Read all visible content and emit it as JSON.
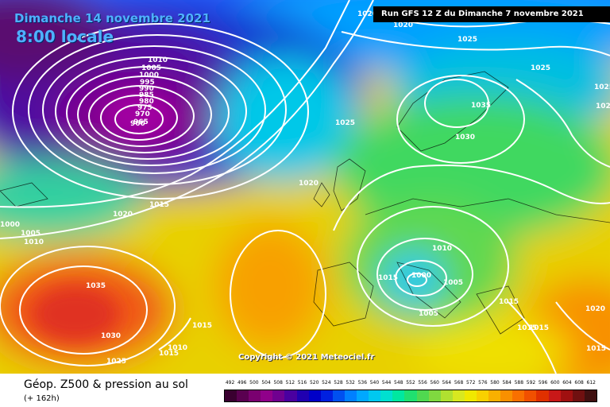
{
  "map": {
    "title": "Dimanche 14 novembre 2021",
    "time": "8:00 locale",
    "run": "Run GFS 12 Z du Dimanche 7 novembre 2021",
    "copyright": "Copyright © 2021 Meteociel.fr"
  },
  "isobar_labels": [
    "1020",
    "1020",
    "1025",
    "1025",
    "1025",
    "1035",
    "1030",
    "1025",
    "1025",
    "1010",
    "1005",
    "1000",
    "995",
    "990",
    "985",
    "980",
    "975",
    "970",
    "965",
    "960",
    "1020",
    "1015",
    "1020",
    "1000",
    "1005",
    "1010",
    "1035",
    "1030",
    "1025",
    "1015",
    "1015",
    "1010",
    "1015",
    "1010",
    "1000",
    "1005",
    "1005",
    "1015",
    "1020",
    "1015",
    "1015",
    "1015"
  ],
  "footer": {
    "title": "Géop. Z500 & pression au sol",
    "subtitle": "(+ 162h)"
  },
  "legend": {
    "ticks": [
      "492",
      "496",
      "500",
      "504",
      "508",
      "512",
      "516",
      "520",
      "524",
      "528",
      "532",
      "536",
      "540",
      "544",
      "548",
      "552",
      "556",
      "560",
      "564",
      "568",
      "572",
      "576",
      "580",
      "584",
      "588",
      "592",
      "596",
      "600",
      "604",
      "608",
      "612"
    ],
    "colors": [
      "#3a0030",
      "#5a0050",
      "#7a0070",
      "#90008a",
      "#700090",
      "#4a00a0",
      "#2000b0",
      "#0000c8",
      "#0020e0",
      "#0050f0",
      "#0080ff",
      "#00a8ff",
      "#00c8f0",
      "#00e0d0",
      "#00e8a0",
      "#20e070",
      "#50d850",
      "#80d840",
      "#b0e030",
      "#d8e820",
      "#f0e800",
      "#f8d000",
      "#f8b000",
      "#f89000",
      "#f87000",
      "#f05000",
      "#e03000",
      "#c81818",
      "#a01010",
      "#701010",
      "#401010"
    ]
  }
}
